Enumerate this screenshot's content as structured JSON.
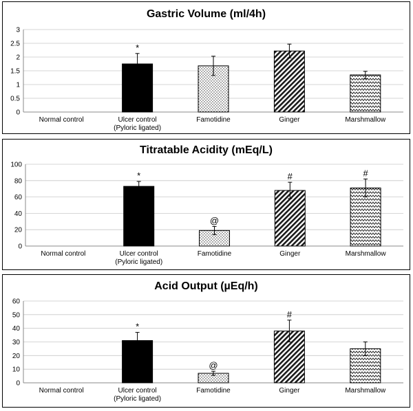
{
  "chart_data": [
    {
      "type": "bar",
      "title": "Gastric Volume (ml/4h)",
      "categories": [
        "Normal control",
        "Ulcer control\n(Pyloric ligated)",
        "Famotidine",
        "Ginger",
        "Marshmallow"
      ],
      "values": [
        0,
        1.75,
        1.68,
        2.22,
        1.35
      ],
      "errors": [
        0,
        0.38,
        0.35,
        0.25,
        0.13
      ],
      "significance": [
        "",
        "*",
        "",
        "",
        ""
      ],
      "ylim": [
        0,
        3
      ],
      "yticks": [
        "0",
        "0.5",
        "1",
        "1.5",
        "2",
        "2.5",
        "3"
      ],
      "patterns": [
        "solid",
        "solid",
        "dots",
        "diagonal",
        "zigzag"
      ],
      "grid": true
    },
    {
      "type": "bar",
      "title": "Titratable Acidity (mEq/L)",
      "categories": [
        "Normal control",
        "Ulcer control\n(Pyloric ligated)",
        "Famotidine",
        "Ginger",
        "Marshmallow"
      ],
      "values": [
        0,
        73,
        19,
        68,
        71
      ],
      "errors": [
        0,
        6,
        5,
        10,
        11
      ],
      "significance": [
        "",
        "*",
        "@",
        "#",
        "#"
      ],
      "ylim": [
        0,
        100
      ],
      "yticks": [
        "0",
        "20",
        "40",
        "60",
        "80",
        "100"
      ],
      "patterns": [
        "solid",
        "solid",
        "dots",
        "diagonal",
        "zigzag"
      ],
      "grid": true
    },
    {
      "type": "bar",
      "title": "Acid Output (µEq/h)",
      "categories": [
        "Normal control",
        "Ulcer control\n(Pyloric ligated)",
        "Famotidine",
        "Ginger",
        "Marshmallow"
      ],
      "values": [
        0,
        31,
        7,
        38,
        25
      ],
      "errors": [
        0,
        6,
        1.5,
        8,
        5
      ],
      "significance": [
        "",
        "*",
        "@",
        "#",
        ""
      ],
      "ylim": [
        0,
        60
      ],
      "yticks": [
        "0",
        "10",
        "20",
        "30",
        "40",
        "50",
        "60"
      ],
      "patterns": [
        "solid",
        "solid",
        "dots",
        "diagonal",
        "zigzag"
      ],
      "grid": true
    }
  ]
}
